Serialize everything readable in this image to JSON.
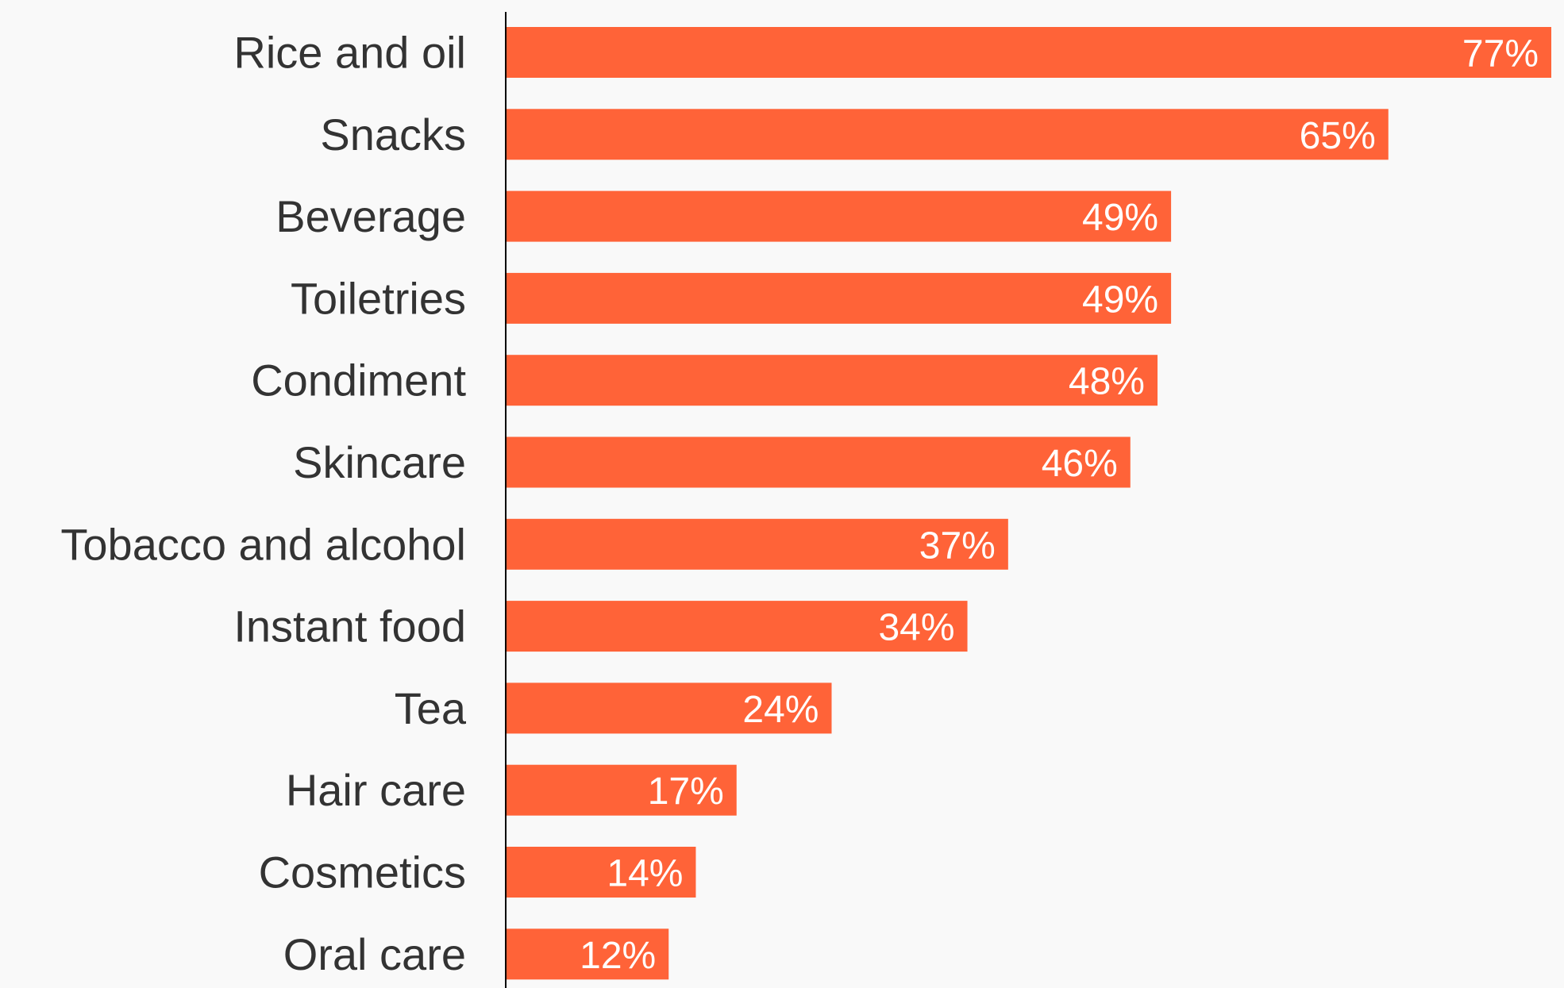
{
  "chart_data": {
    "type": "bar",
    "orientation": "horizontal",
    "categories": [
      "Rice and oil",
      "Snacks",
      "Beverage",
      "Toiletries",
      "Condiment",
      "Skincare",
      "Tobacco and alcohol",
      "Instant food",
      "Tea",
      "Hair care",
      "Cosmetics",
      "Oral care"
    ],
    "values": [
      77,
      65,
      49,
      49,
      48,
      46,
      37,
      34,
      24,
      17,
      14,
      12
    ],
    "value_labels": [
      "77%",
      "65%",
      "49%",
      "49%",
      "48%",
      "46%",
      "37%",
      "34%",
      "24%",
      "17%",
      "14%",
      "12%"
    ],
    "title": "",
    "xlabel": "",
    "ylabel": "",
    "xlim": [
      0,
      77
    ],
    "grid": false,
    "legend": "none",
    "bar_color": "#ff6338",
    "label_color": "#333333",
    "value_label_color": "#ffffff",
    "axis_color": "#000000",
    "background": "#f9f9f9"
  }
}
